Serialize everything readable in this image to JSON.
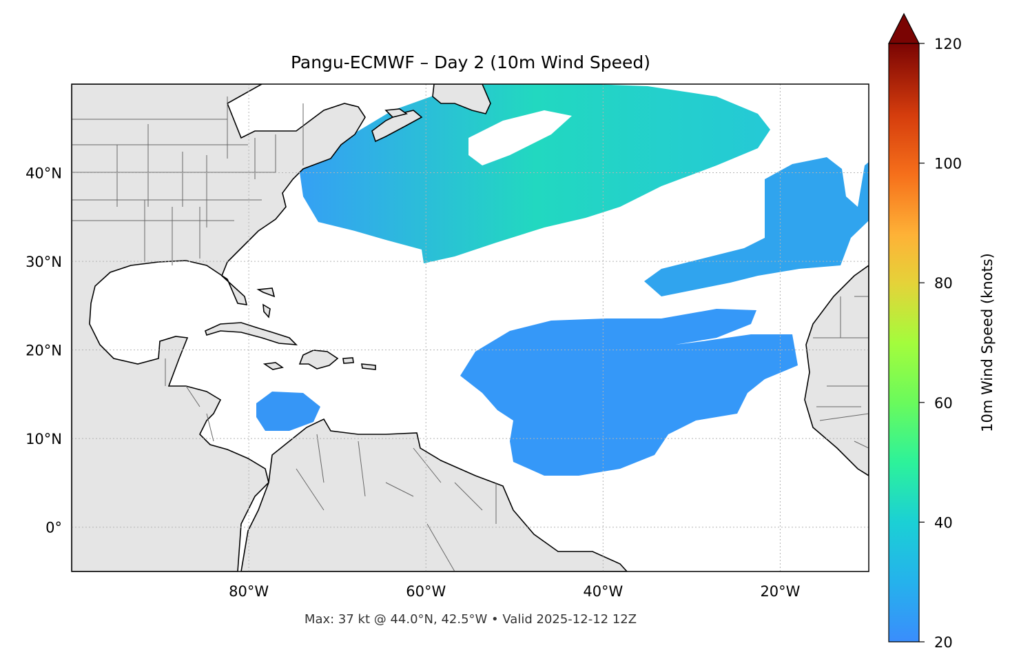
{
  "title": "Pangu-ECMWF – Day 2 (10m Wind Speed)",
  "footer": "Max: 37 kt @ 44.0°N, 42.5°W • Valid 2025-12-12 12Z",
  "map": {
    "lon_range": [
      -100,
      -10
    ],
    "lat_range": [
      -5,
      50
    ],
    "lon_ticks": [
      {
        "value": -80,
        "label": "80°W"
      },
      {
        "value": -60,
        "label": "60°W"
      },
      {
        "value": -40,
        "label": "40°W"
      },
      {
        "value": -20,
        "label": "20°W"
      }
    ],
    "lat_ticks": [
      {
        "value": 40,
        "label": "40°N"
      },
      {
        "value": 30,
        "label": "30°N"
      },
      {
        "value": 20,
        "label": "20°N"
      },
      {
        "value": 10,
        "label": "10°N"
      },
      {
        "value": 0,
        "label": "0°"
      }
    ],
    "gridlines": true,
    "land_color": "#e5e5e5",
    "coastline_color": "#000000",
    "border_color": "#666666",
    "max_wind": {
      "value_kt": 37,
      "lat": 44.0,
      "lon": -42.5
    }
  },
  "colorbar": {
    "label": "10m Wind Speed (knots)",
    "range": [
      20,
      120
    ],
    "extend": "max",
    "ticks": [
      {
        "value": 20,
        "label": "20"
      },
      {
        "value": 40,
        "label": "40"
      },
      {
        "value": 60,
        "label": "60"
      },
      {
        "value": 80,
        "label": "80"
      },
      {
        "value": 100,
        "label": "100"
      },
      {
        "value": 120,
        "label": "120"
      }
    ],
    "colormap": "turbo",
    "colors": [
      "#3a8dfc",
      "#1bd0d5",
      "#2df29a",
      "#a4fc3c",
      "#e5d239",
      "#feb237",
      "#f6701b",
      "#d53d0d",
      "#a51301",
      "#7a0403"
    ]
  }
}
